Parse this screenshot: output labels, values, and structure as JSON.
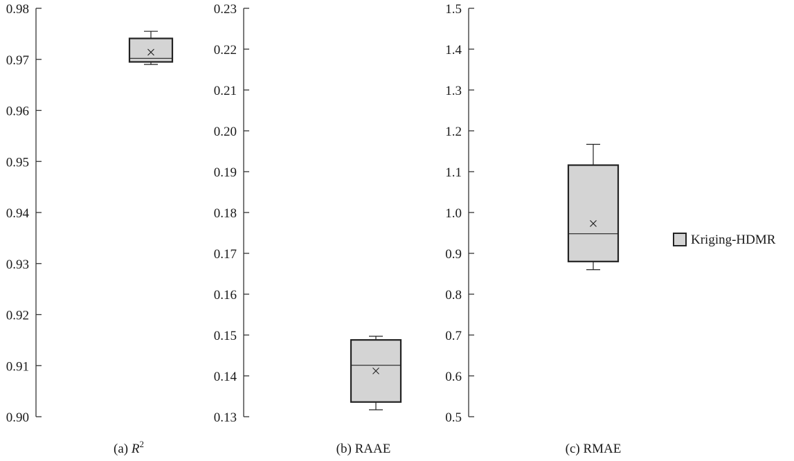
{
  "colors": {
    "box_fill": "#d4d4d4",
    "box_stroke": "#222222",
    "axis": "#333333"
  },
  "legend": {
    "label": "Kriging-HDMR",
    "placement": "right"
  },
  "chart_data": [
    {
      "type": "box",
      "caption_prefix": "(a) ",
      "caption_var": "R",
      "caption_sup": "2",
      "ylim": [
        0.9,
        0.98
      ],
      "ticks": [
        0.9,
        0.91,
        0.92,
        0.93,
        0.94,
        0.95,
        0.96,
        0.97,
        0.98
      ],
      "tick_labels": [
        "0.90",
        "0.91",
        "0.92",
        "0.93",
        "0.94",
        "0.95",
        "0.96",
        "0.97",
        "0.98"
      ],
      "series": [
        {
          "name": "Kriging-HDMR",
          "whisker_low": 0.969,
          "q1": 0.9695,
          "median": 0.9702,
          "q3": 0.9741,
          "whisker_high": 0.9755,
          "mean": 0.9714
        }
      ]
    },
    {
      "type": "box",
      "caption_prefix": "(b) RAAE",
      "caption_var": "",
      "caption_sup": "",
      "ylim": [
        0.13,
        0.23
      ],
      "ticks": [
        0.13,
        0.14,
        0.15,
        0.16,
        0.17,
        0.18,
        0.19,
        0.2,
        0.21,
        0.22,
        0.23
      ],
      "tick_labels": [
        "0.13",
        "0.14",
        "0.15",
        "0.16",
        "0.17",
        "0.18",
        "0.19",
        "0.20",
        "0.21",
        "0.22",
        "0.23"
      ],
      "series": [
        {
          "name": "Kriging-HDMR",
          "whisker_low": 0.1317,
          "q1": 0.1336,
          "median": 0.1426,
          "q3": 0.1488,
          "whisker_high": 0.1497,
          "mean": 0.1412
        }
      ]
    },
    {
      "type": "box",
      "caption_prefix": "(c) RMAE",
      "caption_var": "",
      "caption_sup": "",
      "ylim": [
        0.5,
        1.5
      ],
      "ticks": [
        0.5,
        0.6,
        0.7,
        0.8,
        0.9,
        1.0,
        1.1,
        1.2,
        1.3,
        1.4,
        1.5
      ],
      "tick_labels": [
        "0.5",
        "0.6",
        "0.7",
        "0.8",
        "0.9",
        "1.0",
        "1.1",
        "1.2",
        "1.3",
        "1.4",
        "1.5"
      ],
      "series": [
        {
          "name": "Kriging-HDMR",
          "whisker_low": 0.86,
          "q1": 0.88,
          "median": 0.948,
          "q3": 1.116,
          "whisker_high": 1.167,
          "mean": 0.973
        }
      ]
    }
  ]
}
